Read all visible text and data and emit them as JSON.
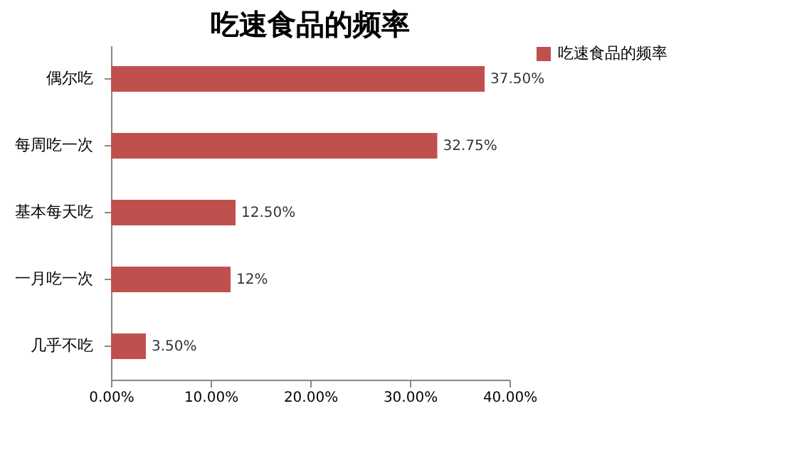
{
  "chart_data": {
    "type": "bar",
    "orientation": "horizontal",
    "title": "吃速食品的频率",
    "categories": [
      "偶尔吃",
      "每周吃一次",
      "基本每天吃",
      "一月吃一次",
      "几乎不吃"
    ],
    "series": [
      {
        "name": "吃速食品的频率",
        "color": "#c0504d",
        "values": [
          37.5,
          32.75,
          12.5,
          12,
          3.5
        ],
        "value_labels": [
          "37.50%",
          "32.75%",
          "12.50%",
          "12%",
          "3.50%"
        ]
      }
    ],
    "xlim": [
      0,
      40
    ],
    "xticks": [
      {
        "value": 0,
        "label": "0.00%"
      },
      {
        "value": 10,
        "label": "10.00%"
      },
      {
        "value": 20,
        "label": "20.00%"
      },
      {
        "value": 30,
        "label": "30.00%"
      },
      {
        "value": 40,
        "label": "40.00%"
      }
    ],
    "grid": false,
    "legend": "right"
  }
}
